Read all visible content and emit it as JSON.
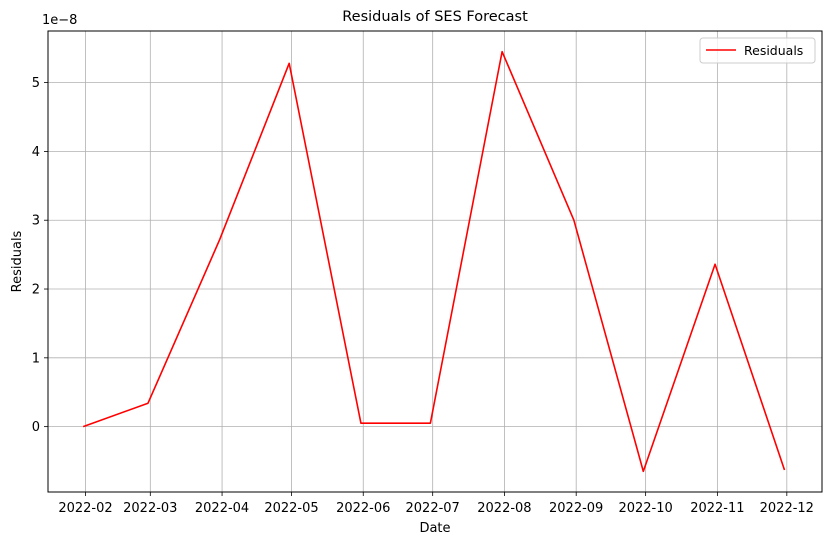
{
  "chart_data": {
    "type": "line",
    "title": "Residuals of SES Forecast",
    "xlabel": "Date",
    "ylabel": "Residuals",
    "y_scale_label": "1e−8",
    "y_scale": 1e-08,
    "grid": true,
    "legend_position": "top-right",
    "ylim": [
      -0.95,
      5.75
    ],
    "y_ticks": [
      0,
      1,
      2,
      3,
      4,
      5
    ],
    "x_ticks": [
      "2022-02",
      "2022-03",
      "2022-04",
      "2022-05",
      "2022-06",
      "2022-07",
      "2022-08",
      "2022-09",
      "2022-10",
      "2022-11",
      "2022-12"
    ],
    "series": [
      {
        "name": "Residuals",
        "color": "#ff0000",
        "x": [
          "2022-01-31",
          "2022-02-28",
          "2022-03-31",
          "2022-04-30",
          "2022-05-31",
          "2022-06-30",
          "2022-07-31",
          "2022-08-31",
          "2022-09-30",
          "2022-10-31",
          "2022-11-30"
        ],
        "values": [
          0.0,
          0.34,
          2.72,
          5.28,
          0.05,
          0.05,
          5.45,
          3.0,
          -0.65,
          2.36,
          -0.63
        ]
      }
    ]
  }
}
